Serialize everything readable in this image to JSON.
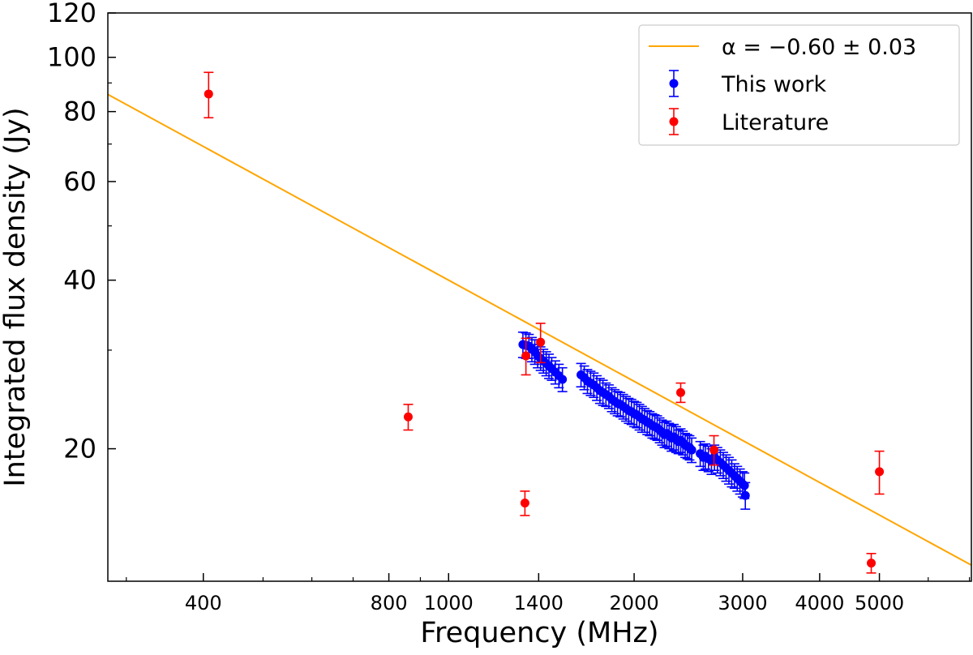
{
  "chart_data": {
    "type": "scatter",
    "title": "",
    "xlabel": "Frequency (MHz)",
    "ylabel": "Integrated flux density (Jy)",
    "xscale": "log",
    "yscale": "log",
    "xlim": [
      280,
      7050
    ],
    "ylim": [
      11.6,
      120
    ],
    "x_ticks": [
      400,
      800,
      1000,
      1400,
      2000,
      3000,
      4000,
      5000
    ],
    "x_tick_labels": [
      "400",
      "800",
      "1000",
      "1400",
      "2000",
      "3000",
      "4000",
      "5000"
    ],
    "y_ticks": [
      20,
      40,
      60,
      80,
      100,
      120
    ],
    "y_tick_labels": [
      "20",
      "40",
      "60",
      "80",
      "100",
      "120"
    ],
    "grid": false,
    "legend_position": "top-right",
    "fit": {
      "label": "α = −0.60 ± 0.03",
      "color": "#ffa500",
      "alpha": -0.6,
      "ref_freq": 1000,
      "ref_flux": 40.0
    },
    "series": [
      {
        "name": "This work",
        "color": "#0000ff",
        "points": [
          [
            1320,
            30.7,
            1.6
          ],
          [
            1335,
            30.6,
            1.6
          ],
          [
            1350,
            30.5,
            1.5
          ],
          [
            1365,
            30.1,
            1.5
          ],
          [
            1380,
            29.8,
            1.5
          ],
          [
            1395,
            29.3,
            1.4
          ],
          [
            1410,
            29.0,
            1.4
          ],
          [
            1425,
            28.7,
            1.4
          ],
          [
            1440,
            28.4,
            1.4
          ],
          [
            1455,
            28.1,
            1.4
          ],
          [
            1470,
            27.8,
            1.3
          ],
          [
            1490,
            27.4,
            1.3
          ],
          [
            1510,
            27.0,
            1.3
          ],
          [
            1530,
            26.6,
            1.3
          ],
          [
            1640,
            27.1,
            1.3
          ],
          [
            1660,
            26.8,
            1.3
          ],
          [
            1680,
            26.4,
            1.3
          ],
          [
            1700,
            26.2,
            1.3
          ],
          [
            1720,
            26.0,
            1.3
          ],
          [
            1740,
            25.7,
            1.3
          ],
          [
            1760,
            25.4,
            1.3
          ],
          [
            1780,
            25.2,
            1.3
          ],
          [
            1800,
            25.0,
            1.2
          ],
          [
            1820,
            24.8,
            1.2
          ],
          [
            1840,
            24.5,
            1.2
          ],
          [
            1860,
            24.3,
            1.2
          ],
          [
            1880,
            24.1,
            1.2
          ],
          [
            1900,
            24.0,
            1.2
          ],
          [
            1920,
            23.8,
            1.2
          ],
          [
            1940,
            23.6,
            1.2
          ],
          [
            1960,
            23.4,
            1.2
          ],
          [
            1980,
            23.3,
            1.2
          ],
          [
            2000,
            23.1,
            1.2
          ],
          [
            2020,
            23.0,
            1.2
          ],
          [
            2040,
            22.8,
            1.2
          ],
          [
            2060,
            22.6,
            1.2
          ],
          [
            2080,
            22.5,
            1.1
          ],
          [
            2100,
            22.3,
            1.1
          ],
          [
            2120,
            22.2,
            1.1
          ],
          [
            2140,
            22.0,
            1.1
          ],
          [
            2160,
            21.9,
            1.1
          ],
          [
            2180,
            21.8,
            1.1
          ],
          [
            2200,
            21.6,
            1.1
          ],
          [
            2220,
            21.4,
            1.1
          ],
          [
            2240,
            21.2,
            1.1
          ],
          [
            2260,
            21.3,
            1.1
          ],
          [
            2280,
            21.1,
            1.1
          ],
          [
            2300,
            20.9,
            1.1
          ],
          [
            2320,
            21.0,
            1.1
          ],
          [
            2340,
            20.8,
            1.1
          ],
          [
            2360,
            20.6,
            1.0
          ],
          [
            2380,
            20.7,
            1.0
          ],
          [
            2400,
            20.5,
            1.0
          ],
          [
            2420,
            20.3,
            1.0
          ],
          [
            2440,
            20.2,
            1.0
          ],
          [
            2460,
            20.1,
            1.0
          ],
          [
            2480,
            19.9,
            1.0
          ],
          [
            2560,
            19.6,
            1.0
          ],
          [
            2590,
            19.3,
            1.0
          ],
          [
            2610,
            19.4,
            1.0
          ],
          [
            2640,
            19.2,
            1.0
          ],
          [
            2670,
            19.0,
            1.0
          ],
          [
            2700,
            19.3,
            1.0
          ],
          [
            2730,
            19.1,
            1.0
          ],
          [
            2760,
            18.9,
            1.0
          ],
          [
            2790,
            18.7,
            1.0
          ],
          [
            2820,
            18.5,
            1.0
          ],
          [
            2850,
            18.3,
            1.0
          ],
          [
            2880,
            18.1,
            1.0
          ],
          [
            2910,
            17.9,
            0.9
          ],
          [
            2940,
            17.7,
            0.9
          ],
          [
            2970,
            17.5,
            0.9
          ],
          [
            3000,
            17.3,
            0.9
          ],
          [
            3020,
            17.2,
            0.9
          ],
          [
            3030,
            16.5,
            0.9
          ]
        ]
      },
      {
        "name": "Literature",
        "color": "#ff0000",
        "points": [
          [
            408,
            86.0,
            8.0
          ],
          [
            860,
            22.8,
            1.2
          ],
          [
            1330,
            16.0,
            0.8
          ],
          [
            1335,
            29.3,
            2.2
          ],
          [
            1410,
            31.0,
            2.5
          ],
          [
            2380,
            25.2,
            1.0
          ],
          [
            2695,
            19.9,
            1.2
          ],
          [
            4850,
            12.5,
            0.5
          ],
          [
            5000,
            18.2,
            1.6
          ]
        ]
      }
    ]
  }
}
